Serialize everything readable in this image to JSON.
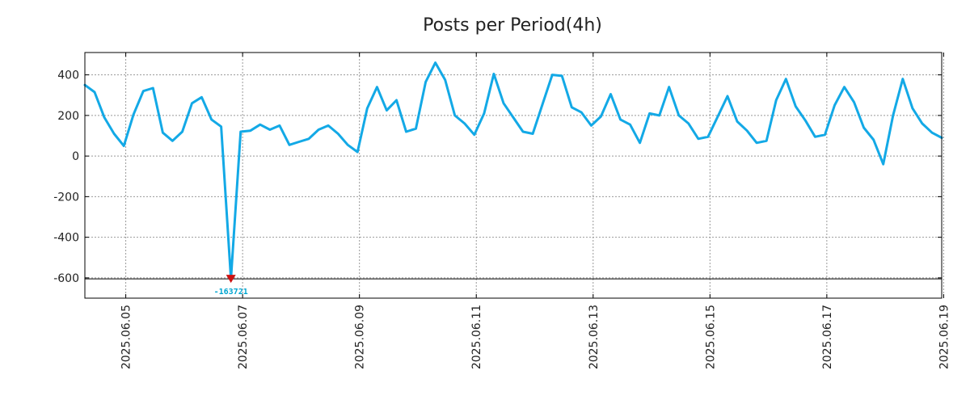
{
  "chart_data": {
    "type": "line",
    "title": "Posts per Period(4h)",
    "xlabel": "",
    "ylabel": "",
    "ylim": [
      -700,
      510
    ],
    "y_ticks": [
      400,
      200,
      0,
      -200,
      -400,
      -600
    ],
    "y_tick_labels": [
      "400",
      "200",
      "0",
      "-200",
      "-400",
      "-600"
    ],
    "x_tick_labels": [
      "2025.06.05",
      "2025.06.07",
      "2025.06.09",
      "2025.06.11",
      "2025.06.13",
      "2025.06.15",
      "2025.06.17",
      "2025.06.19"
    ],
    "x_ticks_index": [
      4.2,
      16.2,
      28.2,
      40.2,
      52.2,
      64.2,
      76.2,
      88.2
    ],
    "grid": true,
    "series": [
      {
        "name": "Posts per Period(4h)",
        "color": "#13a9e6",
        "values": [
          350,
          315,
          190,
          110,
          50,
          205,
          320,
          335,
          115,
          75,
          120,
          260,
          290,
          180,
          145,
          -605,
          120,
          125,
          155,
          130,
          150,
          55,
          70,
          85,
          130,
          150,
          110,
          55,
          20,
          235,
          340,
          225,
          275,
          120,
          135,
          365,
          460,
          375,
          200,
          160,
          105,
          210,
          405,
          260,
          190,
          120,
          110,
          255,
          400,
          395,
          240,
          215,
          150,
          195,
          305,
          180,
          155,
          65,
          210,
          200,
          340,
          200,
          160,
          85,
          95,
          195,
          295,
          170,
          125,
          65,
          75,
          275,
          380,
          245,
          175,
          95,
          105,
          250,
          340,
          265,
          140,
          80,
          -40,
          200,
          380,
          235,
          160,
          115,
          90
        ]
      }
    ],
    "reference_line": {
      "y": -605
    },
    "annotation": {
      "label": "-163721",
      "color": "#00a5d0",
      "marker_color": "#cc1111",
      "point_index": 15
    }
  }
}
